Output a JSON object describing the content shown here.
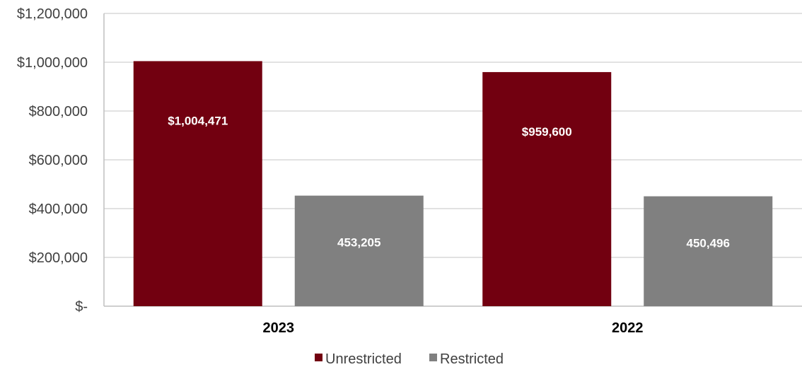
{
  "chart_data": {
    "type": "bar",
    "categories": [
      "2023",
      "2022"
    ],
    "series": [
      {
        "name": "Unrestricted",
        "values": [
          1004471,
          959600
        ],
        "labels": [
          "$1,004,471",
          "$959,600"
        ],
        "color": "#720010"
      },
      {
        "name": "Restricted",
        "values": [
          453205,
          450496
        ],
        "labels": [
          "453,205",
          "450,496"
        ],
        "color": "#808080"
      }
    ],
    "y_ticks": [
      0,
      200000,
      400000,
      600000,
      800000,
      1000000,
      1200000
    ],
    "y_tick_labels": [
      "$-",
      "$200,000",
      "$400,000",
      "$600,000",
      "$800,000",
      "$1,000,000",
      "$1,200,000"
    ],
    "ylim": [
      0,
      1200000
    ],
    "grid": true,
    "legend_position": "bottom",
    "gridline_color": "#d9d9d9",
    "axis_color": "#bfbfbf"
  }
}
